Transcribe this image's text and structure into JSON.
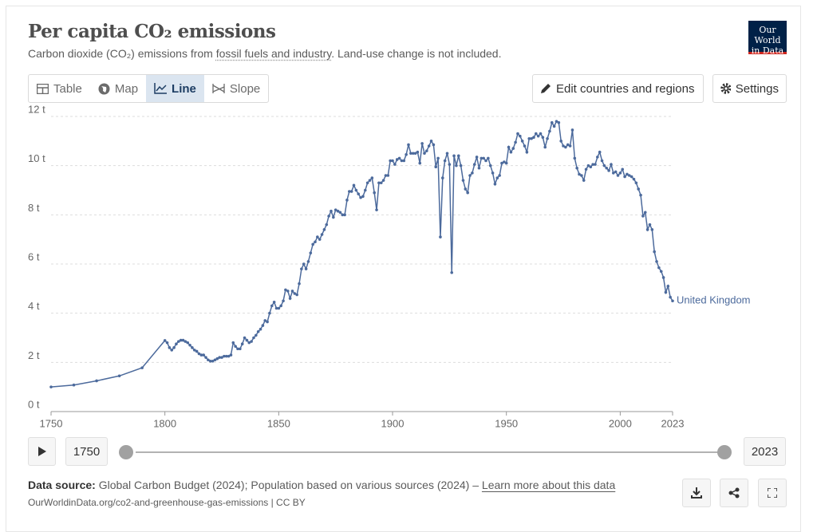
{
  "chart_data": {
    "type": "line",
    "title": "Per capita CO₂ emissions",
    "subtitle": {
      "before": "Carbon dioxide (CO₂) emissions from ",
      "link": "fossil fuels and industry",
      "after": ". Land-use change is not included."
    },
    "logo": [
      "Our World",
      "in Data"
    ],
    "tabs": [
      "Table",
      "Map",
      "Line",
      "Slope"
    ],
    "buttons": [
      "Edit countries and regions",
      "Settings"
    ],
    "timeline": {
      "start": "1750",
      "end": "2023"
    },
    "source": {
      "label": "Data source:",
      "text": " Global Carbon Budget (2024); Population based on various sources (2024) – ",
      "link": "Learn more about this data",
      "url": "OurWorldinData.org/co2-and-greenhouse-gas-emissions | CC BY"
    },
    "x": [
      1750,
      1760,
      1770,
      1780,
      1790,
      1800,
      1801,
      1802,
      1803,
      1804,
      1805,
      1806,
      1807,
      1808,
      1809,
      1810,
      1811,
      1812,
      1813,
      1814,
      1815,
      1816,
      1817,
      1818,
      1819,
      1820,
      1821,
      1822,
      1823,
      1824,
      1825,
      1826,
      1827,
      1828,
      1829,
      1830,
      1831,
      1832,
      1833,
      1834,
      1835,
      1836,
      1837,
      1838,
      1839,
      1840,
      1841,
      1842,
      1843,
      1844,
      1845,
      1846,
      1847,
      1848,
      1849,
      1850,
      1851,
      1852,
      1853,
      1854,
      1855,
      1856,
      1857,
      1858,
      1859,
      1860,
      1861,
      1862,
      1863,
      1864,
      1865,
      1866,
      1867,
      1868,
      1869,
      1870,
      1871,
      1872,
      1873,
      1874,
      1875,
      1876,
      1877,
      1878,
      1879,
      1880,
      1881,
      1882,
      1883,
      1884,
      1885,
      1886,
      1887,
      1888,
      1889,
      1890,
      1891,
      1892,
      1893,
      1894,
      1895,
      1896,
      1897,
      1898,
      1899,
      1900,
      1901,
      1902,
      1903,
      1904,
      1905,
      1906,
      1907,
      1908,
      1909,
      1910,
      1911,
      1912,
      1913,
      1914,
      1915,
      1916,
      1917,
      1918,
      1919,
      1920,
      1921,
      1922,
      1923,
      1924,
      1925,
      1926,
      1927,
      1928,
      1929,
      1930,
      1931,
      1932,
      1933,
      1934,
      1935,
      1936,
      1937,
      1938,
      1939,
      1940,
      1941,
      1942,
      1943,
      1944,
      1945,
      1946,
      1947,
      1948,
      1949,
      1950,
      1951,
      1952,
      1953,
      1954,
      1955,
      1956,
      1957,
      1958,
      1959,
      1960,
      1961,
      1962,
      1963,
      1964,
      1965,
      1966,
      1967,
      1968,
      1969,
      1970,
      1971,
      1972,
      1973,
      1974,
      1975,
      1976,
      1977,
      1978,
      1979,
      1980,
      1981,
      1982,
      1983,
      1984,
      1985,
      1986,
      1987,
      1988,
      1989,
      1990,
      1991,
      1992,
      1993,
      1994,
      1995,
      1996,
      1997,
      1998,
      1999,
      2000,
      2001,
      2002,
      2003,
      2004,
      2005,
      2006,
      2007,
      2008,
      2009,
      2010,
      2011,
      2012,
      2013,
      2014,
      2015,
      2016,
      2017,
      2018,
      2019,
      2020,
      2021,
      2022,
      2023
    ],
    "series": [
      {
        "name": "United Kingdom",
        "color": "#4c6a9c",
        "values": [
          1.0,
          1.08,
          1.25,
          1.45,
          1.78,
          2.89,
          2.8,
          2.6,
          2.5,
          2.6,
          2.75,
          2.85,
          2.9,
          2.9,
          2.85,
          2.8,
          2.7,
          2.6,
          2.5,
          2.45,
          2.35,
          2.3,
          2.3,
          2.2,
          2.1,
          2.05,
          2.05,
          2.1,
          2.15,
          2.2,
          2.2,
          2.25,
          2.25,
          2.25,
          2.3,
          2.8,
          2.65,
          2.55,
          2.55,
          2.75,
          3.0,
          2.9,
          2.8,
          2.85,
          3.0,
          3.1,
          3.25,
          3.35,
          3.5,
          3.7,
          3.65,
          4.0,
          4.3,
          4.45,
          4.2,
          4.2,
          4.3,
          4.5,
          4.95,
          4.9,
          4.6,
          4.9,
          4.8,
          4.75,
          5.2,
          5.8,
          6.0,
          5.8,
          6.1,
          6.45,
          6.8,
          6.9,
          7.1,
          7.0,
          7.2,
          7.4,
          7.6,
          7.95,
          8.15,
          7.9,
          8.2,
          8.15,
          8.1,
          8.0,
          8.0,
          8.6,
          8.95,
          8.95,
          9.2,
          9.0,
          8.85,
          8.7,
          8.75,
          9.0,
          9.3,
          9.4,
          9.5,
          8.9,
          8.2,
          9.3,
          9.3,
          9.4,
          9.6,
          9.6,
          10.2,
          10.2,
          10.05,
          10.25,
          10.3,
          10.2,
          10.2,
          10.45,
          10.85,
          10.5,
          10.5,
          10.5,
          10.55,
          10.1,
          10.9,
          10.5,
          10.6,
          10.8,
          11.0,
          10.85,
          9.95,
          10.3,
          7.1,
          9.5,
          10.2,
          10.5,
          10.05,
          5.65,
          10.4,
          10.0,
          10.4,
          10.0,
          9.4,
          9.05,
          8.9,
          9.6,
          9.7,
          10.05,
          10.35,
          9.9,
          10.3,
          10.3,
          10.2,
          10.3,
          10.0,
          9.7,
          9.25,
          9.5,
          9.6,
          10.1,
          10.15,
          10.1,
          10.75,
          10.55,
          10.7,
          10.95,
          11.3,
          11.2,
          11.0,
          10.8,
          10.55,
          11.1,
          11.1,
          11.15,
          11.3,
          11.2,
          11.3,
          11.15,
          10.75,
          11.1,
          11.4,
          11.75,
          11.6,
          11.8,
          11.75,
          11.0,
          10.8,
          10.75,
          10.85,
          10.8,
          11.45,
          10.3,
          9.9,
          9.65,
          9.6,
          9.4,
          9.85,
          10.0,
          9.95,
          10.05,
          10.05,
          10.35,
          10.55,
          10.2,
          10.0,
          9.9,
          9.8,
          10.05,
          9.7,
          9.75,
          9.6,
          9.7,
          9.85,
          9.55,
          9.65,
          9.6,
          9.55,
          9.45,
          9.3,
          9.05,
          8.8,
          7.95,
          8.1,
          7.4,
          7.6,
          7.4,
          6.5,
          6.1,
          5.85,
          5.7,
          5.45,
          4.85,
          5.1,
          4.65,
          4.5
        ]
      }
    ],
    "xlim": [
      1750,
      2023
    ],
    "xticks": [
      1750,
      1800,
      1850,
      1900,
      1950,
      2000,
      2023
    ],
    "ylim": [
      0,
      12
    ],
    "yticks": [
      {
        "value": 0,
        "label": "0 t"
      },
      {
        "value": 2,
        "label": "2 t"
      },
      {
        "value": 4,
        "label": "4 t"
      },
      {
        "value": 6,
        "label": "6 t"
      },
      {
        "value": 8,
        "label": "8 t"
      },
      {
        "value": 10,
        "label": "10 t"
      },
      {
        "value": 12,
        "label": "12 t"
      }
    ],
    "grid": true
  }
}
